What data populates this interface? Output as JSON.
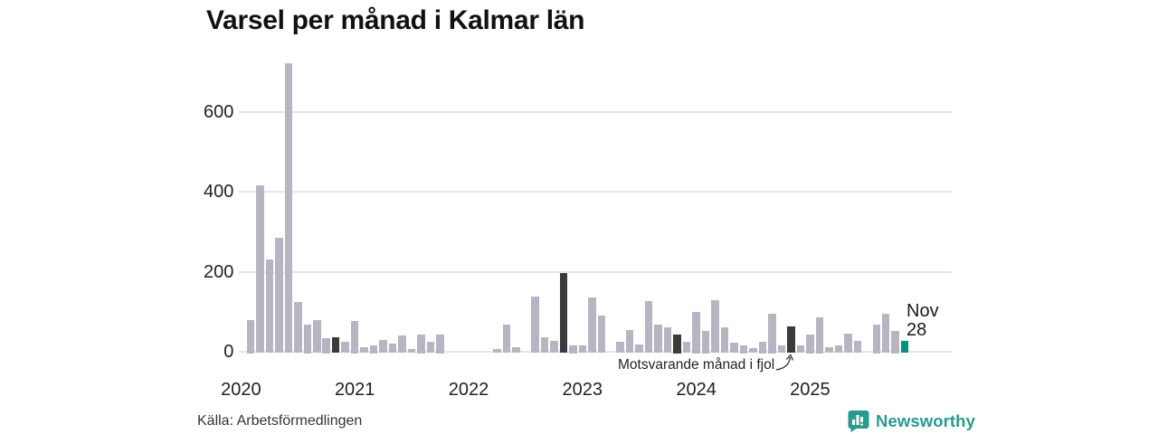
{
  "title": "Varsel per månad i Kalmar län",
  "source": "Källa: Arbetsförmedlingen",
  "annotation": {
    "text": "Motsvarande månad i fjol"
  },
  "current_label": {
    "month": "Nov",
    "value": "28"
  },
  "brand": {
    "name": "Newsworthy"
  },
  "colors": {
    "bar_default": "#b8b5c3",
    "bar_last_year_nov": "#3b3b3b",
    "bar_current": "#00947e",
    "gridline": "#e5e5ea",
    "axis_text": "#222222",
    "brand_teal": "#2a9a8f"
  },
  "chart_data": {
    "type": "bar",
    "title": "Varsel per månad i Kalmar län",
    "xlabel": "",
    "ylabel": "",
    "x_start_month": "2020-01",
    "x_end_month": "2025-11",
    "x_tick_labels": [
      "2020",
      "2021",
      "2022",
      "2023",
      "2024",
      "2025"
    ],
    "y_ticks": [
      0,
      200,
      400,
      600
    ],
    "ylim": [
      0,
      730
    ],
    "grid": "horizontal-only",
    "values": [
      0,
      79,
      415,
      230,
      285,
      720,
      125,
      69,
      80,
      34,
      37,
      24,
      78,
      12,
      17,
      29,
      20,
      41,
      7,
      43,
      24,
      43,
      0,
      0,
      0,
      0,
      0,
      7,
      67,
      11,
      0,
      137,
      37,
      28,
      197,
      17,
      15,
      136,
      90,
      0,
      24,
      54,
      19,
      127,
      67,
      60,
      44,
      24,
      100,
      53,
      128,
      62,
      22,
      17,
      10,
      26,
      95,
      15,
      64,
      16,
      43,
      87,
      11,
      16,
      45,
      28,
      0,
      69,
      94,
      53,
      28
    ],
    "highlight_previous_november_indices": [
      10,
      22,
      34,
      46,
      58
    ],
    "current_month_index": 70,
    "current_month_label": "Nov",
    "current_month_value": 28,
    "legend": "none"
  }
}
